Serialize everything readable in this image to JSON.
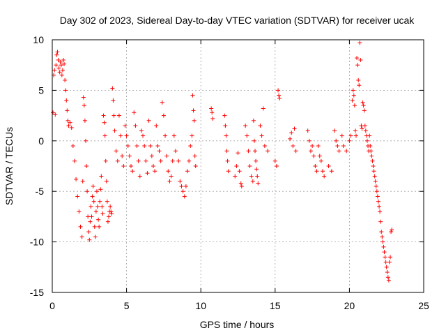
{
  "chart_data": {
    "type": "scatter",
    "title": "Day 302 of 2023, Sidereal Day-to-day VTEC variation (SDTVAR) for receiver ucak",
    "xlabel": "GPS time / hours",
    "ylabel": "SDTVAR / TECUs",
    "xlim": [
      0,
      25
    ],
    "ylim": [
      -15,
      10
    ],
    "xticks": [
      "0",
      "5",
      "10",
      "15",
      "20",
      "25"
    ],
    "yticks": [
      "10",
      "5",
      "0",
      "-5",
      "-10",
      "-15"
    ],
    "xtick_values": [
      0,
      5,
      10,
      15,
      20,
      25
    ],
    "ytick_values": [
      10,
      5,
      0,
      -5,
      -10,
      -15
    ],
    "grid": true,
    "marker": "+",
    "color": "#ff0000",
    "series": [
      {
        "name": "SDTVAR",
        "points": [
          [
            0.05,
            2.8
          ],
          [
            0.1,
            6.5
          ],
          [
            0.15,
            7.0
          ],
          [
            0.2,
            2.6
          ],
          [
            0.25,
            7.5
          ],
          [
            0.3,
            8.5
          ],
          [
            0.35,
            8.8
          ],
          [
            0.4,
            8.0
          ],
          [
            0.45,
            7.2
          ],
          [
            0.5,
            6.8
          ],
          [
            0.55,
            7.8
          ],
          [
            0.6,
            7.5
          ],
          [
            0.65,
            6.5
          ],
          [
            0.7,
            7.0
          ],
          [
            0.75,
            8.0
          ],
          [
            0.8,
            7.6
          ],
          [
            0.85,
            6.0
          ],
          [
            0.9,
            5.0
          ],
          [
            0.95,
            4.0
          ],
          [
            1.0,
            3.0
          ],
          [
            1.05,
            2.0
          ],
          [
            1.1,
            1.5
          ],
          [
            1.2,
            1.8
          ],
          [
            1.3,
            1.3
          ],
          [
            1.4,
            -0.5
          ],
          [
            1.5,
            -2.0
          ],
          [
            1.6,
            -3.8
          ],
          [
            1.7,
            -5.5
          ],
          [
            1.8,
            -7.0
          ],
          [
            1.9,
            -8.5
          ],
          [
            2.0,
            -9.5
          ],
          [
            2.05,
            -4.0
          ],
          [
            2.1,
            4.3
          ],
          [
            2.15,
            3.5
          ],
          [
            2.2,
            2.0
          ],
          [
            2.25,
            0.0
          ],
          [
            2.3,
            -2.5
          ],
          [
            2.35,
            -5.0
          ],
          [
            2.4,
            -7.5
          ],
          [
            2.45,
            -9.0
          ],
          [
            2.5,
            -9.8
          ],
          [
            2.55,
            -8.0
          ],
          [
            2.6,
            -6.5
          ],
          [
            2.65,
            -7.5
          ],
          [
            2.7,
            -5.5
          ],
          [
            2.75,
            -4.5
          ],
          [
            2.8,
            -6.0
          ],
          [
            2.85,
            -8.5
          ],
          [
            2.9,
            -9.5
          ],
          [
            2.95,
            -7.0
          ],
          [
            3.0,
            -5.0
          ],
          [
            3.05,
            -6.5
          ],
          [
            3.1,
            -7.8
          ],
          [
            3.15,
            -8.5
          ],
          [
            3.2,
            -6.0
          ],
          [
            3.25,
            -4.8
          ],
          [
            3.3,
            -3.5
          ],
          [
            3.35,
            -6.5
          ],
          [
            3.4,
            -7.2
          ],
          [
            3.45,
            2.5
          ],
          [
            3.5,
            1.8
          ],
          [
            3.55,
            0.5
          ],
          [
            3.6,
            -2.0
          ],
          [
            3.65,
            -4.0
          ],
          [
            3.7,
            -6.0
          ],
          [
            3.75,
            -8.0
          ],
          [
            3.8,
            -7.5
          ],
          [
            3.85,
            -7.0
          ],
          [
            3.9,
            -6.5
          ],
          [
            3.95,
            -7.0
          ],
          [
            4.0,
            -7.2
          ],
          [
            4.05,
            5.2
          ],
          [
            4.1,
            4.0
          ],
          [
            4.15,
            2.5
          ],
          [
            4.2,
            1.0
          ],
          [
            4.3,
            -1.0
          ],
          [
            4.4,
            -2.0
          ],
          [
            4.5,
            2.5
          ],
          [
            4.6,
            0.5
          ],
          [
            4.7,
            -1.5
          ],
          [
            4.8,
            -2.5
          ],
          [
            4.9,
            1.5
          ],
          [
            5.0,
            0.5
          ],
          [
            5.1,
            -0.5
          ],
          [
            5.2,
            -1.5
          ],
          [
            5.3,
            -2.5
          ],
          [
            5.4,
            -3.0
          ],
          [
            5.5,
            2.8
          ],
          [
            5.6,
            1.5
          ],
          [
            5.7,
            -0.5
          ],
          [
            5.8,
            -2.0
          ],
          [
            5.9,
            -3.5
          ],
          [
            6.0,
            1.0
          ],
          [
            6.1,
            0.5
          ],
          [
            6.2,
            -0.5
          ],
          [
            6.3,
            -2.0
          ],
          [
            6.4,
            -3.2
          ],
          [
            6.5,
            2.0
          ],
          [
            6.6,
            -0.5
          ],
          [
            6.7,
            -1.5
          ],
          [
            6.8,
            -2.5
          ],
          [
            6.9,
            -3.0
          ],
          [
            7.0,
            1.5
          ],
          [
            7.1,
            -0.5
          ],
          [
            7.2,
            -1.0
          ],
          [
            7.3,
            -2.0
          ],
          [
            7.4,
            3.8
          ],
          [
            7.5,
            2.5
          ],
          [
            7.6,
            0.5
          ],
          [
            7.7,
            -1.5
          ],
          [
            7.8,
            -3.0
          ],
          [
            7.9,
            -4.0
          ],
          [
            8.0,
            -3.5
          ],
          [
            8.1,
            -2.0
          ],
          [
            8.2,
            0.5
          ],
          [
            8.3,
            -1.0
          ],
          [
            8.5,
            -2.0
          ],
          [
            8.6,
            -4.0
          ],
          [
            8.7,
            -4.5
          ],
          [
            8.8,
            -5.0
          ],
          [
            8.9,
            -5.5
          ],
          [
            9.0,
            -4.5
          ],
          [
            9.1,
            -3.0
          ],
          [
            9.2,
            -2.0
          ],
          [
            9.3,
            -0.5
          ],
          [
            9.4,
            0.5
          ],
          [
            9.45,
            4.5
          ],
          [
            9.5,
            3.0
          ],
          [
            9.55,
            2.0
          ],
          [
            9.6,
            -1.5
          ],
          [
            9.65,
            -2.5
          ],
          [
            10.7,
            3.2
          ],
          [
            10.75,
            2.8
          ],
          [
            10.8,
            2.2
          ],
          [
            11.6,
            2.5
          ],
          [
            11.65,
            1.5
          ],
          [
            11.7,
            0.5
          ],
          [
            11.75,
            -1.0
          ],
          [
            11.8,
            -2.0
          ],
          [
            11.85,
            -3.0
          ],
          [
            12.3,
            -3.5
          ],
          [
            12.4,
            -2.5
          ],
          [
            12.5,
            -1.2
          ],
          [
            12.6,
            -3.0
          ],
          [
            12.7,
            -4.2
          ],
          [
            12.75,
            -4.5
          ],
          [
            13.0,
            1.5
          ],
          [
            13.1,
            0.5
          ],
          [
            13.2,
            -1.0
          ],
          [
            13.3,
            -2.5
          ],
          [
            13.4,
            -3.5
          ],
          [
            13.5,
            -4.0
          ],
          [
            13.55,
            2.0
          ],
          [
            13.6,
            0.0
          ],
          [
            13.65,
            -1.0
          ],
          [
            13.7,
            -2.0
          ],
          [
            13.75,
            -2.8
          ],
          [
            13.8,
            -3.5
          ],
          [
            13.85,
            -4.2
          ],
          [
            14.0,
            1.5
          ],
          [
            14.1,
            0.5
          ],
          [
            14.2,
            3.2
          ],
          [
            14.3,
            -0.5
          ],
          [
            14.5,
            -1.0
          ],
          [
            15.0,
            -2.0
          ],
          [
            15.1,
            -2.5
          ],
          [
            15.2,
            5.0
          ],
          [
            15.25,
            4.5
          ],
          [
            15.3,
            4.2
          ],
          [
            16.0,
            0.2
          ],
          [
            16.1,
            0.8
          ],
          [
            16.2,
            -0.5
          ],
          [
            16.3,
            1.2
          ],
          [
            16.4,
            -1.0
          ],
          [
            17.2,
            1.0
          ],
          [
            17.3,
            0.0
          ],
          [
            17.4,
            -1.0
          ],
          [
            17.5,
            -0.5
          ],
          [
            17.6,
            -1.5
          ],
          [
            17.7,
            -2.5
          ],
          [
            17.8,
            -3.0
          ],
          [
            17.9,
            -0.5
          ],
          [
            18.0,
            -1.5
          ],
          [
            18.1,
            -2.0
          ],
          [
            18.2,
            -3.0
          ],
          [
            18.3,
            -3.5
          ],
          [
            18.6,
            -2.5
          ],
          [
            18.8,
            -3.0
          ],
          [
            19.0,
            1.0
          ],
          [
            19.1,
            0.0
          ],
          [
            19.2,
            -0.5
          ],
          [
            19.3,
            -1.0
          ],
          [
            19.5,
            0.5
          ],
          [
            19.6,
            -0.5
          ],
          [
            19.8,
            -1.0
          ],
          [
            20.0,
            0.0
          ],
          [
            20.1,
            0.5
          ],
          [
            20.2,
            4.0
          ],
          [
            20.25,
            5.0
          ],
          [
            20.3,
            4.5
          ],
          [
            20.35,
            3.5
          ],
          [
            20.4,
            1.0
          ],
          [
            20.45,
            0.5
          ],
          [
            20.5,
            8.2
          ],
          [
            20.55,
            7.5
          ],
          [
            20.6,
            6.0
          ],
          [
            20.65,
            5.5
          ],
          [
            20.7,
            9.7
          ],
          [
            20.75,
            8.0
          ],
          [
            20.8,
            1.5
          ],
          [
            20.85,
            1.2
          ],
          [
            20.9,
            3.8
          ],
          [
            20.95,
            3.5
          ],
          [
            21.0,
            3.0
          ],
          [
            21.05,
            1.5
          ],
          [
            21.1,
            1.0
          ],
          [
            21.15,
            0.5
          ],
          [
            21.2,
            0.0
          ],
          [
            21.25,
            -0.5
          ],
          [
            21.3,
            -1.0
          ],
          [
            21.35,
            0.5
          ],
          [
            21.4,
            -0.5
          ],
          [
            21.45,
            -1.0
          ],
          [
            21.5,
            -1.5
          ],
          [
            21.55,
            -2.0
          ],
          [
            21.6,
            -2.5
          ],
          [
            21.65,
            -3.0
          ],
          [
            21.7,
            -3.5
          ],
          [
            21.75,
            -4.0
          ],
          [
            21.8,
            -4.5
          ],
          [
            21.85,
            -5.0
          ],
          [
            21.9,
            -5.5
          ],
          [
            21.95,
            -6.0
          ],
          [
            22.0,
            -6.5
          ],
          [
            22.05,
            -7.0
          ],
          [
            22.1,
            -8.0
          ],
          [
            22.15,
            -9.0
          ],
          [
            22.2,
            -9.5
          ],
          [
            22.25,
            -10.0
          ],
          [
            22.3,
            -10.5
          ],
          [
            22.35,
            -11.0
          ],
          [
            22.4,
            -11.5
          ],
          [
            22.45,
            -12.0
          ],
          [
            22.5,
            -12.5
          ],
          [
            22.55,
            -13.0
          ],
          [
            22.6,
            -13.5
          ],
          [
            22.65,
            -13.8
          ],
          [
            22.7,
            -12.0
          ],
          [
            22.75,
            -11.5
          ],
          [
            22.8,
            -9.0
          ],
          [
            22.85,
            -8.8
          ]
        ]
      }
    ]
  }
}
